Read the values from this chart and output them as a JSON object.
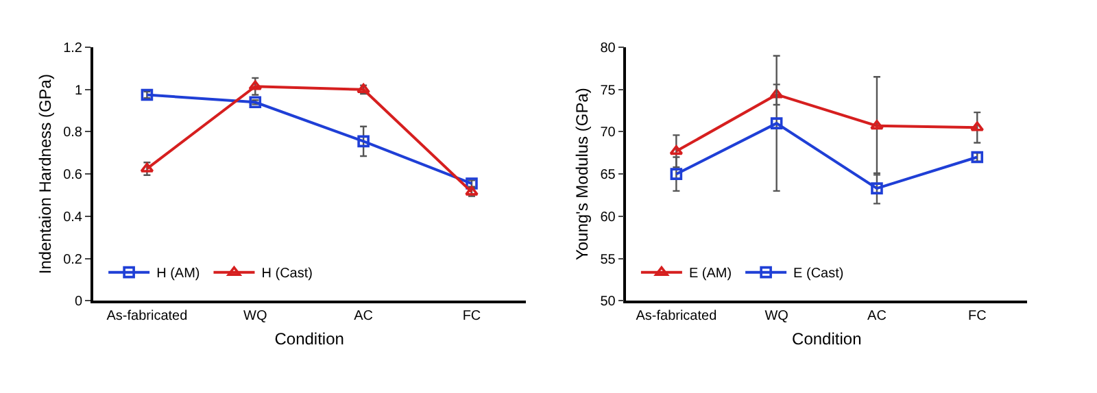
{
  "chart_data": [
    {
      "type": "line",
      "xlabel": "Condition",
      "ylabel": "Indentaion Hardness (GPa)",
      "categories": [
        "As-fabricated",
        "WQ",
        "AC",
        "FC"
      ],
      "ylim": [
        0,
        1.2
      ],
      "yticks": [
        0,
        0.2,
        0.4,
        0.6,
        0.8,
        {
          "value": 1,
          "label": "1"
        },
        1.2
      ],
      "legend": "bottom left",
      "series": [
        {
          "name": "H (AM)",
          "color": "#1f3fd6",
          "marker": "square",
          "values": [
            0.975,
            0.94,
            0.755,
            0.555
          ],
          "errors": [
            0.015,
            0.01,
            0.07,
            0.015
          ]
        },
        {
          "name": "H (Cast)",
          "color": "#d61f1f",
          "marker": "triangle",
          "values": [
            0.625,
            1.015,
            1.0,
            0.515
          ],
          "errors": [
            0.03,
            0.04,
            0.02,
            0.02
          ]
        }
      ]
    },
    {
      "type": "line",
      "xlabel": "Condition",
      "ylabel": "Young's Modulus (GPa)",
      "categories": [
        "As-fabricated",
        "WQ",
        "AC",
        "FC"
      ],
      "ylim": [
        50,
        80
      ],
      "yticks": [
        50,
        55,
        60,
        65,
        70,
        75,
        80
      ],
      "legend": "bottom left",
      "series": [
        {
          "name": "E (AM)",
          "color": "#d61f1f",
          "marker": "triangle",
          "values": [
            67.7,
            74.4,
            70.7,
            70.5
          ],
          "errors": [
            1.9,
            1.2,
            5.8,
            1.8
          ]
        },
        {
          "name": "E (Cast)",
          "color": "#1f3fd6",
          "marker": "square",
          "values": [
            65,
            71,
            63.3,
            67
          ],
          "errors": [
            2,
            8,
            1.8,
            0.5
          ]
        }
      ]
    }
  ]
}
